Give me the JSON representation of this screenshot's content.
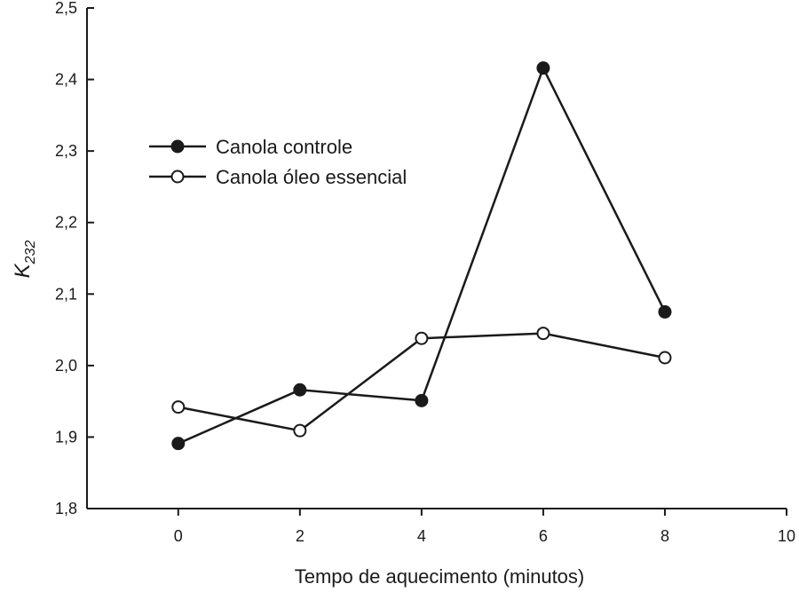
{
  "chart_data": {
    "type": "line",
    "title": "",
    "xlabel": "Tempo de aquecimento (minutos)",
    "ylabel_main": "K",
    "ylabel_sub": "232",
    "xlim": [
      -1.5,
      10
    ],
    "ylim": [
      1.8,
      2.5
    ],
    "x_ticks": [
      0,
      2,
      4,
      6,
      8,
      10
    ],
    "x_tick_labels": [
      "0",
      "2",
      "4",
      "6",
      "8",
      "10"
    ],
    "y_ticks": [
      1.8,
      1.9,
      2.0,
      2.1,
      2.2,
      2.3,
      2.4,
      2.5
    ],
    "y_tick_labels": [
      "1,8",
      "1,9",
      "2,0",
      "2,1",
      "2,2",
      "2,3",
      "2,4",
      "2,5"
    ],
    "grid": false,
    "legend_position": "upper-left",
    "x": [
      0,
      2,
      4,
      6,
      8
    ],
    "series": [
      {
        "name": "Canola controle",
        "marker": "filled-circle",
        "values": [
          1.891,
          1.966,
          1.951,
          2.416,
          2.075
        ]
      },
      {
        "name": "Canola óleo essencial",
        "marker": "open-circle",
        "values": [
          1.942,
          1.909,
          2.038,
          2.045,
          2.011
        ]
      }
    ],
    "colors": {
      "line": "#1a1a1a",
      "marker_fill_filled": "#1a1a1a",
      "marker_fill_open": "#ffffff"
    }
  }
}
